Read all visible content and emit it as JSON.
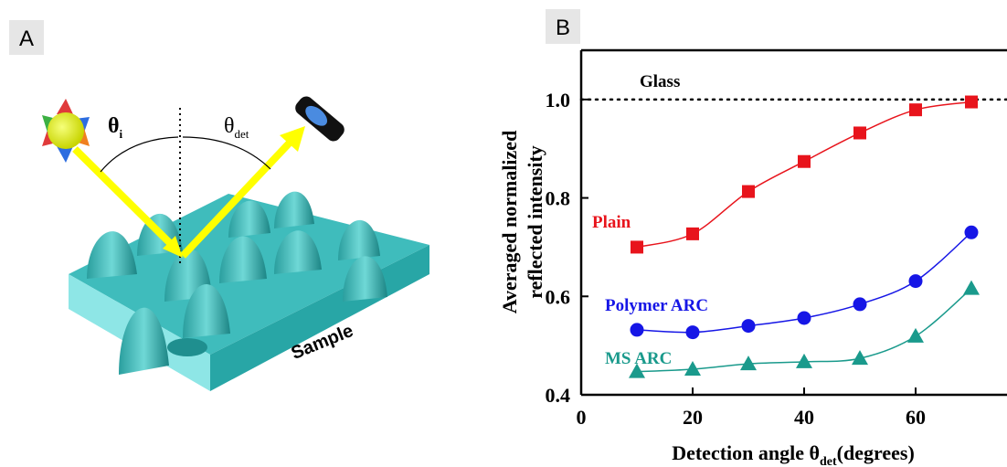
{
  "panel_labels": [
    "A",
    "B"
  ],
  "diagram": {
    "theta_i": {
      "symbol": "θ",
      "sub": "i"
    },
    "theta_det": {
      "symbol": "θ",
      "sub": "det"
    },
    "sample": "Sample"
  },
  "chart_data": {
    "type": "scatter",
    "ylabel": [
      "Averaged normalized",
      "reflected intensity"
    ],
    "xlabel": {
      "main": "Detection angle θ",
      "sub": "det",
      "rest": "(degrees)"
    },
    "xlim": [
      0,
      76
    ],
    "ylim": [
      0.4,
      1.1
    ],
    "xticks": [
      0,
      20,
      40,
      60
    ],
    "yticks": [
      0.4,
      0.6,
      0.8,
      {
        "value": 1.0,
        "label": "1.0"
      }
    ],
    "reference_line": {
      "name": "Glass",
      "value": 1.0,
      "color": "#000000"
    },
    "x": [
      10,
      20,
      30,
      40,
      50,
      60,
      70
    ],
    "series": [
      {
        "name": "Plain",
        "color": "#e8141c",
        "marker": "square",
        "values": [
          0.7,
          0.727,
          0.813,
          0.874,
          0.932,
          0.979,
          0.995
        ]
      },
      {
        "name": "Polymer ARC",
        "color": "#1616e6",
        "marker": "circle",
        "values": [
          0.532,
          0.527,
          0.54,
          0.556,
          0.584,
          0.631,
          0.73
        ]
      },
      {
        "name": "MS ARC",
        "color": "#1a9a8c",
        "marker": "triangle",
        "values": [
          0.447,
          0.452,
          0.463,
          0.467,
          0.474,
          0.519,
          0.616
        ]
      }
    ]
  }
}
